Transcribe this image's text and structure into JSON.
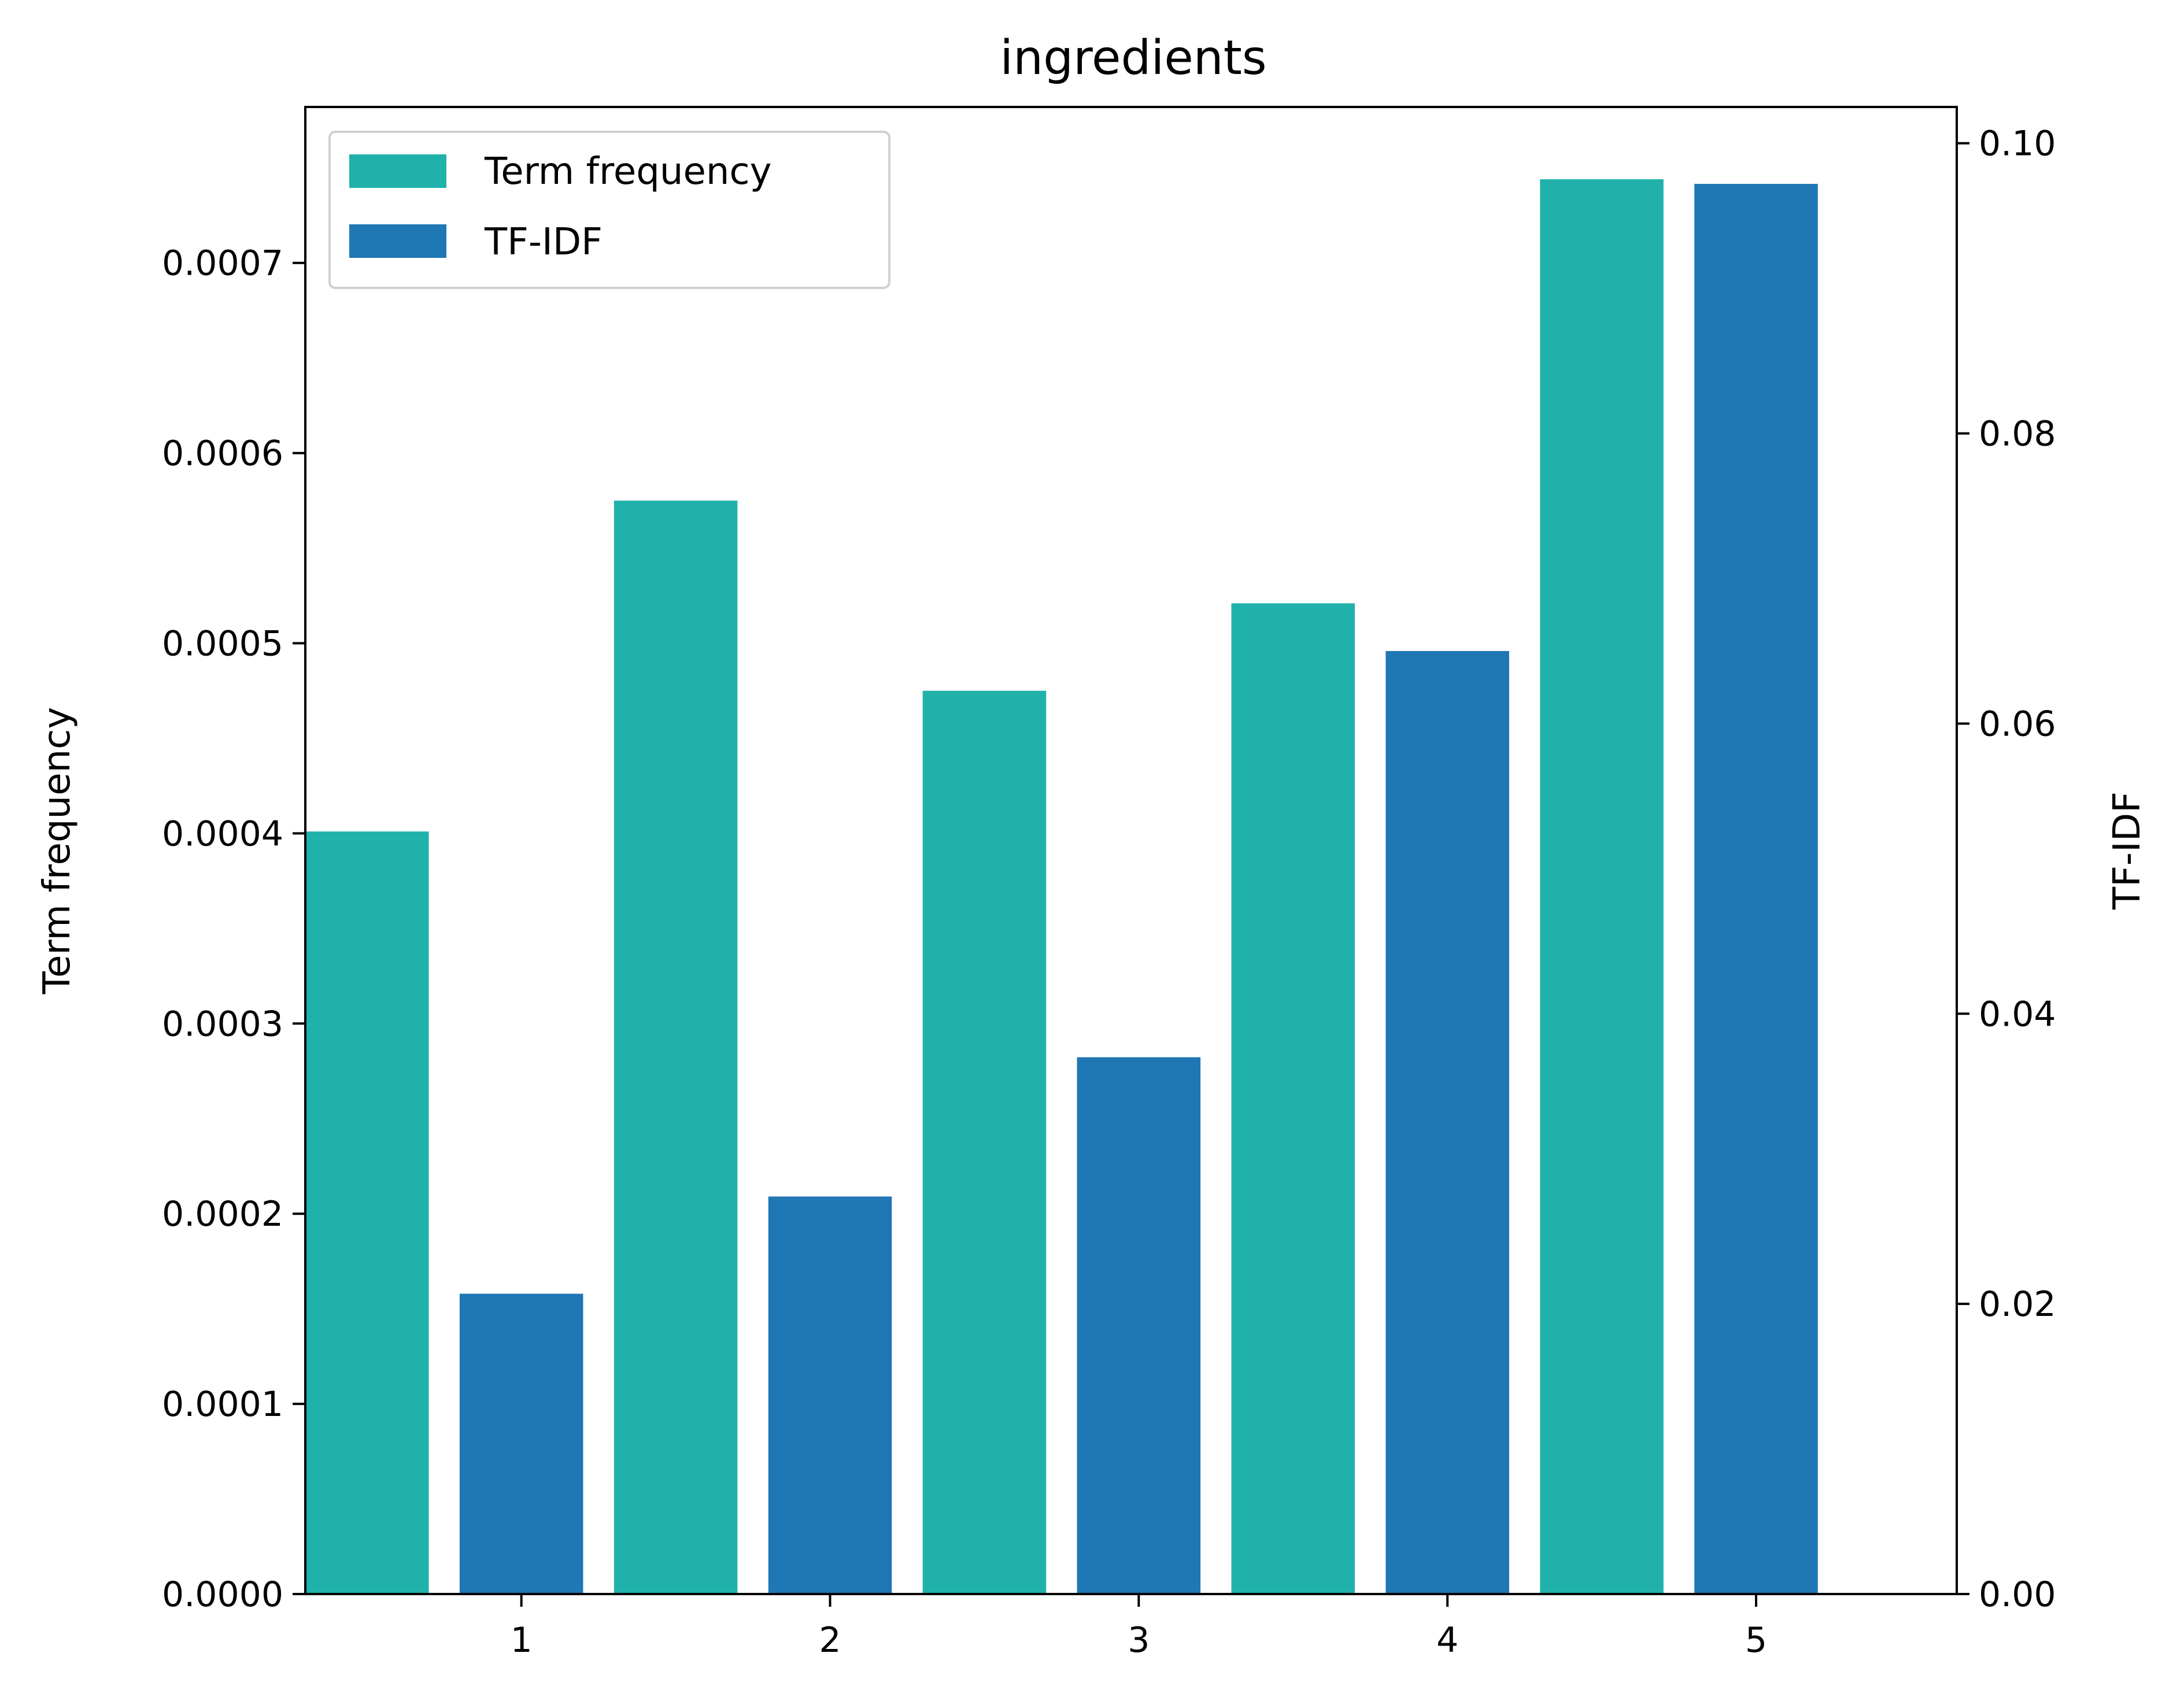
{
  "chart_data": {
    "type": "bar",
    "title": "ingredients",
    "categories": [
      "1",
      "2",
      "3",
      "4",
      "5"
    ],
    "series": [
      {
        "name": "Term frequency",
        "axis": "left",
        "color": "#20b2aa",
        "values": [
          0.000401,
          0.000575,
          0.000475,
          0.000521,
          0.000744
        ]
      },
      {
        "name": "TF-IDF",
        "axis": "right",
        "color": "#1f77b4",
        "values": [
          0.0207,
          0.0274,
          0.037,
          0.065,
          0.0972
        ]
      }
    ],
    "xlabel": "",
    "ylabel": "Term frequency",
    "y2label": "TF-IDF",
    "xlim": [
      0.3,
      5.65
    ],
    "ylim": [
      0,
      0.000782
    ],
    "y2lim": [
      0,
      0.1025
    ],
    "yticks": [
      "0.0000",
      "0.0001",
      "0.0002",
      "0.0003",
      "0.0004",
      "0.0005",
      "0.0006",
      "0.0007"
    ],
    "ytick_values": [
      0,
      0.0001,
      0.0002,
      0.0003,
      0.0004,
      0.0005,
      0.0006,
      0.0007
    ],
    "y2ticks": [
      "0.00",
      "0.02",
      "0.04",
      "0.06",
      "0.08",
      "0.10"
    ],
    "y2tick_values": [
      0,
      0.02,
      0.04,
      0.06,
      0.08,
      0.1
    ],
    "grid": false,
    "legend": "top-left"
  }
}
